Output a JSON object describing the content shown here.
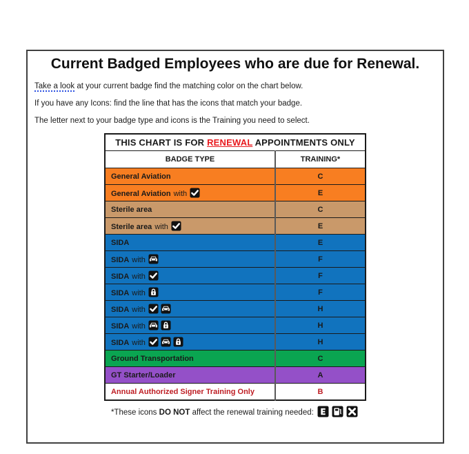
{
  "frame": {
    "title": "Current Badged Employees who are due for Renewal.",
    "instructions": [
      {
        "underlined": "Take a look",
        "text": " at your current badge find the matching color on the chart below."
      },
      {
        "underlined": "",
        "text": "If you have any Icons: find the line that has the icons that match your badge."
      },
      {
        "underlined": "",
        "text": "The letter next to your badge type and icons is the Training you need to select."
      }
    ]
  },
  "table": {
    "banner": {
      "prefix": "THIS CHART IS FOR ",
      "highlight": "RENEWAL",
      "suffix": " APPOINTMENTS ONLY"
    },
    "columns": {
      "badge": "BADGE TYPE",
      "training": "TRAINING*"
    },
    "rows": [
      {
        "label": "General Aviation",
        "connector": "",
        "icons": [],
        "training": "C",
        "color": "orange",
        "text": "black"
      },
      {
        "label": "General Aviation",
        "connector": "with",
        "icons": [
          "check-icon"
        ],
        "training": "E",
        "color": "orange",
        "text": "black"
      },
      {
        "label": "Sterile area",
        "connector": "",
        "icons": [],
        "training": "C",
        "color": "tan",
        "text": "black"
      },
      {
        "label": "Sterile area",
        "connector": "with",
        "icons": [
          "check-icon"
        ],
        "training": "E",
        "color": "tan",
        "text": "black"
      },
      {
        "label": "SIDA",
        "connector": "",
        "icons": [],
        "training": "E",
        "color": "blue",
        "text": "black"
      },
      {
        "label": "SIDA",
        "connector": "with",
        "icons": [
          "car-icon"
        ],
        "training": "F",
        "color": "blue",
        "text": "black"
      },
      {
        "label": "SIDA",
        "connector": "with",
        "icons": [
          "check-icon"
        ],
        "training": "F",
        "color": "blue",
        "text": "black"
      },
      {
        "label": "SIDA",
        "connector": "with",
        "icons": [
          "lock-icon"
        ],
        "training": "F",
        "color": "blue",
        "text": "black"
      },
      {
        "label": "SIDA",
        "connector": "with",
        "icons": [
          "check-icon",
          "car-icon"
        ],
        "training": "H",
        "color": "blue",
        "text": "black"
      },
      {
        "label": "SIDA",
        "connector": "with",
        "icons": [
          "car-icon",
          "lock-icon"
        ],
        "training": "H",
        "color": "blue",
        "text": "black"
      },
      {
        "label": "SIDA",
        "connector": "with",
        "icons": [
          "check-icon",
          "car-icon",
          "lock-icon"
        ],
        "training": "H",
        "color": "blue",
        "text": "black"
      },
      {
        "label": "Ground Transportation",
        "connector": "",
        "icons": [],
        "training": "C",
        "color": "green",
        "text": "black"
      },
      {
        "label": "GT Starter/Loader",
        "connector": "",
        "icons": [],
        "training": "A",
        "color": "purple",
        "text": "black"
      },
      {
        "label": "Annual Authorized Signer Training Only",
        "connector": "",
        "icons": [],
        "training": "B",
        "color": "white",
        "text": "red"
      }
    ]
  },
  "footnote": {
    "prefix": "*These icons ",
    "bold": "DO NOT",
    "suffix": " affect the renewal training needed:",
    "icons": [
      "escort-e-icon",
      "fuel-pump-icon",
      "crossed-tools-icon"
    ]
  },
  "colors": {
    "orange": "#F87E21",
    "tan": "#C9996A",
    "blue": "#1173BE",
    "green": "#0AA551",
    "purple": "#9450C8",
    "white": "#FFFFFF",
    "black": "#1A1A1A",
    "red": "#BE1E24",
    "banner_red": "#E8191D"
  }
}
